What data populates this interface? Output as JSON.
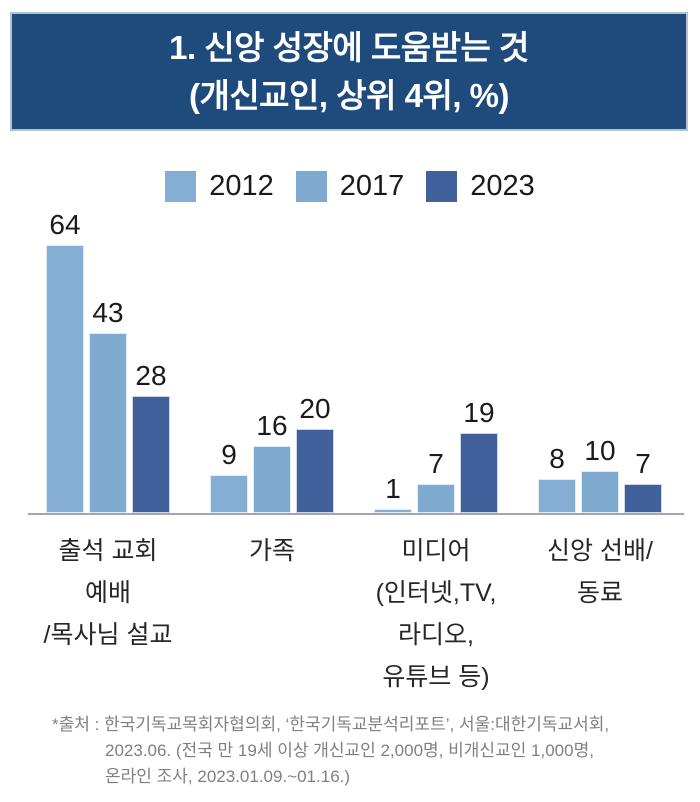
{
  "title": {
    "line1": "1. 신앙 성장에 도움받는 것",
    "line2": "(개신교인, 상위 4위, %)"
  },
  "colors": {
    "banner_bg": "#1f4a7c",
    "banner_border": "#b6c2d2",
    "series_2012": "#85aed4",
    "series_2017": "#7faacf",
    "series_2023": "#40609c",
    "axis_line": "#a6a6a6",
    "source_text": "#808080"
  },
  "legend": [
    {
      "label": "2012",
      "color": "#85aed4"
    },
    {
      "label": "2017",
      "color": "#7faacf"
    },
    {
      "label": "2023",
      "color": "#40609c"
    }
  ],
  "chart_data": {
    "type": "bar",
    "title": "1. 신앙 성장에 도움받는 것 (개신교인, 상위 4위, %)",
    "categories": [
      [
        "출석 교회",
        "예배",
        "/목사님 설교"
      ],
      [
        "가족"
      ],
      [
        "미디어",
        "(인터넷,TV,",
        "라디오,",
        "유튜브 등)"
      ],
      [
        "신앙 선배/",
        "동료"
      ]
    ],
    "series": [
      {
        "name": "2012",
        "color": "#85aed4",
        "values": [
          64,
          9,
          1,
          8
        ]
      },
      {
        "name": "2017",
        "color": "#7faacf",
        "values": [
          43,
          16,
          7,
          10
        ]
      },
      {
        "name": "2023",
        "color": "#40609c",
        "values": [
          28,
          20,
          19,
          7
        ]
      }
    ],
    "ylim": [
      0,
      64
    ],
    "value_labels": true,
    "legend_position": "top",
    "grid": false,
    "unit": "%"
  },
  "source": {
    "lines": [
      "*출처 : 한국기독교목회자협의회, ‘한국기독교분석리포트’, 서울:대한기독교서회,",
      "2023.06. (전국 만 19세 이상 개신교인 2,000명, 비개신교인 1,000명,",
      "온라인 조사, 2023.01.09.~01.16.)"
    ]
  }
}
